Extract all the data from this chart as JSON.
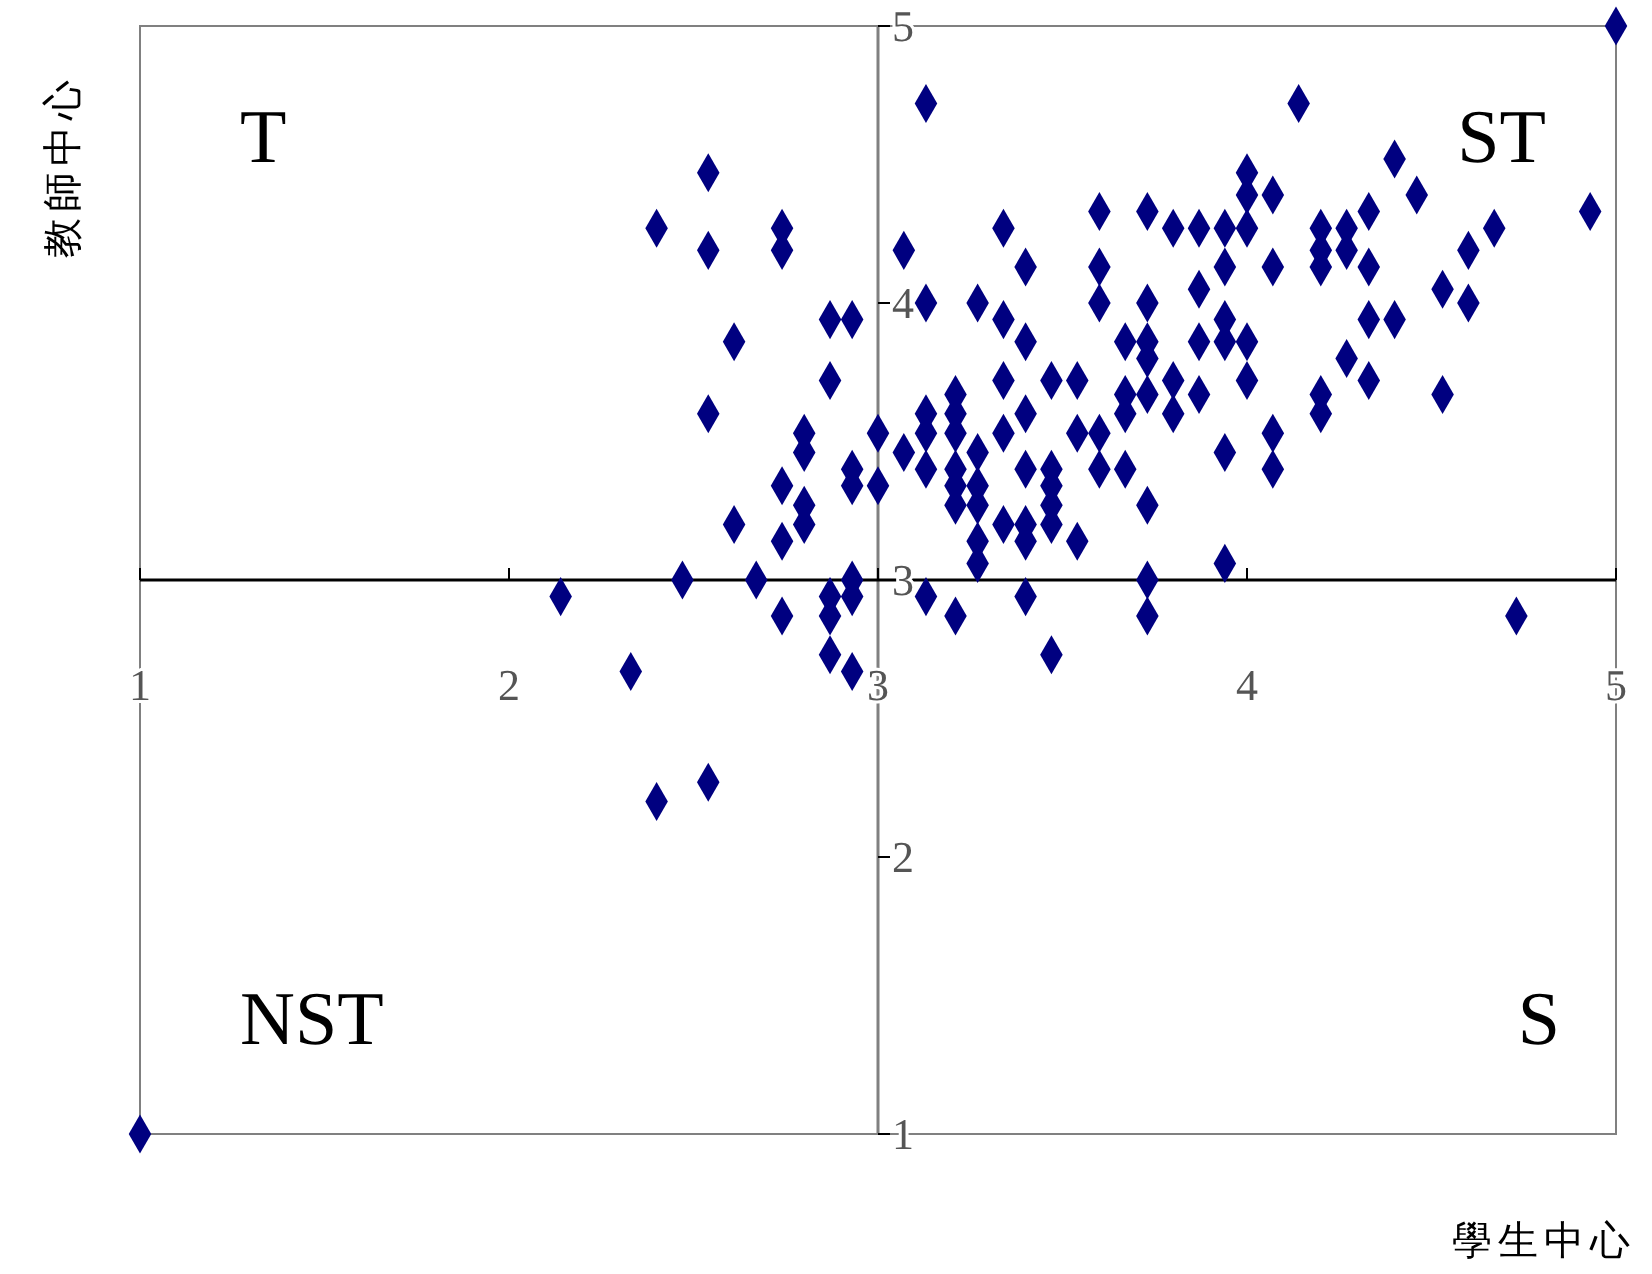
{
  "chart_data": {
    "type": "scatter",
    "xlabel": "學生中心",
    "ylabel": "教師中心",
    "xlim": [
      1,
      5
    ],
    "ylim": [
      1,
      5
    ],
    "xticks": [
      1,
      2,
      3,
      4,
      5
    ],
    "yticks": [
      1,
      2,
      3,
      4,
      5
    ],
    "grid": false,
    "marker": "diamond",
    "annotations": [
      "T",
      "ST",
      "NST",
      "S"
    ],
    "series": [
      {
        "color": "#000080",
        "x": [
          1,
          5,
          2.14,
          2.33,
          2.4,
          2.4,
          2.47,
          2.54,
          2.54,
          2.54,
          2.54,
          2.61,
          2.61,
          2.67,
          2.74,
          2.74,
          2.74,
          2.74,
          2.74,
          2.8,
          2.8,
          2.8,
          2.8,
          2.87,
          2.93,
          2.87,
          2.87,
          2.87,
          2.87,
          2.93,
          2.93,
          2.93,
          2.93,
          2.93,
          3.0,
          3.0,
          3.07,
          3.13,
          3.34,
          3.4,
          3.6,
          3.73,
          3.8,
          3.87,
          3.94,
          3.6,
          3.94,
          3.87,
          3.13,
          3.27,
          3.6,
          3.73,
          3.34,
          3.4,
          3.94,
          3.94,
          3.87,
          3.67,
          3.73,
          3.73,
          3.34,
          3.47,
          3.54,
          3.67,
          3.73,
          3.67,
          3.8,
          3.8,
          3.87,
          3.21,
          3.13,
          3.21,
          3.13,
          3.21,
          3.07,
          3.27,
          3.34,
          3.4,
          3.54,
          3.6,
          3.13,
          3.21,
          3.21,
          3.27,
          3.21,
          3.27,
          3.4,
          3.47,
          3.47,
          3.47,
          3.34,
          3.4,
          3.47,
          3.4,
          3.27,
          3.27,
          3.54,
          3.6,
          3.67,
          3.73,
          3.94,
          3.94,
          3.73,
          3.13,
          3.21,
          3.4,
          3.73,
          3.47,
          4.14,
          4.4,
          4.0,
          4.0,
          4.07,
          4.46,
          4.0,
          4.2,
          4.27,
          4.2,
          4.27,
          4.2,
          4.33,
          4.33,
          4.07,
          4.93,
          4.67,
          4.6,
          4.53,
          4.6,
          4.0,
          4.33,
          4.4,
          4.27,
          4.33,
          4.0,
          4.2,
          4.2,
          4.53,
          4.07,
          4.07,
          4.73
        ],
        "values": [
          1,
          5,
          2.94,
          2.67,
          4.27,
          2.2,
          3.0,
          4.47,
          4.19,
          3.6,
          2.27,
          3.86,
          3.2,
          3.0,
          4.27,
          4.19,
          3.34,
          3.14,
          2.87,
          3.53,
          3.46,
          3.27,
          3.2,
          3.94,
          3.94,
          3.72,
          2.94,
          2.87,
          2.73,
          3.0,
          2.94,
          2.67,
          3.4,
          3.34,
          3.53,
          3.34,
          4.19,
          4.72,
          4.27,
          4.13,
          4.33,
          4.33,
          4.27,
          4.27,
          4.27,
          4.13,
          4.13,
          4.05,
          4.0,
          4.0,
          4.0,
          4.0,
          3.94,
          3.86,
          3.94,
          3.86,
          3.86,
          3.86,
          3.86,
          3.8,
          3.72,
          3.72,
          3.72,
          3.67,
          3.67,
          3.6,
          3.72,
          3.6,
          3.67,
          3.67,
          3.6,
          3.6,
          3.53,
          3.53,
          3.46,
          3.46,
          3.53,
          3.6,
          3.53,
          3.53,
          3.4,
          3.4,
          3.34,
          3.34,
          3.27,
          3.27,
          3.4,
          3.4,
          3.34,
          3.27,
          3.2,
          3.2,
          3.2,
          3.14,
          3.14,
          3.06,
          3.14,
          3.4,
          3.4,
          3.27,
          3.46,
          3.06,
          3.0,
          2.94,
          2.87,
          2.94,
          2.87,
          2.73,
          4.72,
          4.52,
          4.47,
          4.39,
          4.39,
          4.39,
          4.27,
          4.27,
          4.27,
          4.19,
          4.19,
          4.13,
          4.33,
          4.13,
          4.13,
          4.33,
          4.27,
          4.19,
          4.05,
          4.0,
          3.86,
          3.94,
          3.94,
          3.8,
          3.72,
          3.72,
          3.67,
          3.6,
          3.67,
          3.53,
          3.4,
          2.87
        ]
      }
    ]
  }
}
